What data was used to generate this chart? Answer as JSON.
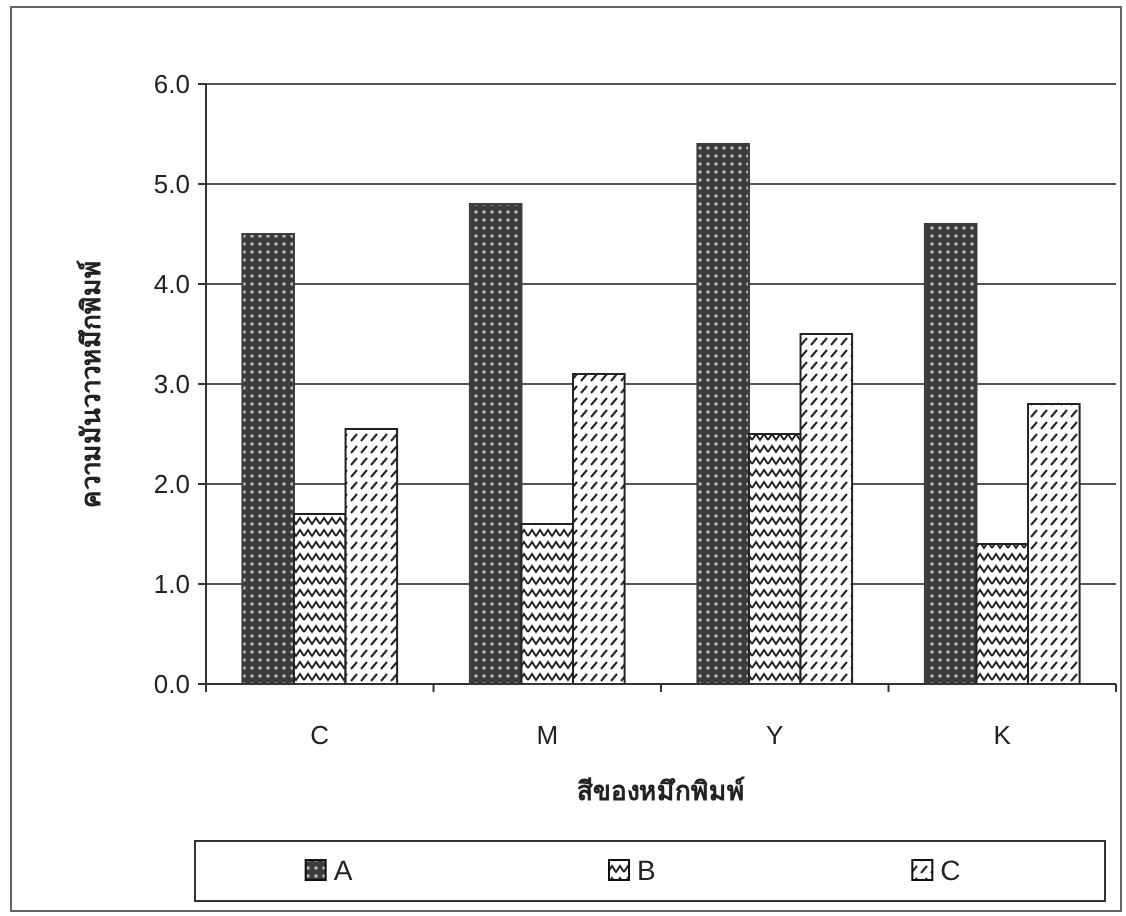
{
  "chart_data": {
    "type": "bar",
    "xlabel": "สีของหมึกพิมพ์",
    "ylabel": "ความมันวาวหมึกพิมพ์",
    "categories": [
      "C",
      "M",
      "Y",
      "K"
    ],
    "series": [
      {
        "name": "A",
        "color": "#3c3c3c",
        "values": [
          4.5,
          4.8,
          5.4,
          4.6
        ]
      },
      {
        "name": "B",
        "color": "#222222",
        "values": [
          1.7,
          1.6,
          2.5,
          1.4
        ]
      },
      {
        "name": "C",
        "color": "#222222",
        "values": [
          2.55,
          3.1,
          3.5,
          2.8
        ]
      }
    ],
    "ylim": [
      0,
      6
    ],
    "yticks": [
      {
        "value": 0,
        "label": "0.0"
      },
      {
        "value": 1,
        "label": "1.0"
      },
      {
        "value": 2,
        "label": "2.0"
      },
      {
        "value": 3,
        "label": "3.0"
      },
      {
        "value": 4,
        "label": "4.0"
      },
      {
        "value": 5,
        "label": "5.0"
      },
      {
        "value": 6,
        "label": "6.0"
      }
    ],
    "grid": "y",
    "legend": "bottom"
  }
}
